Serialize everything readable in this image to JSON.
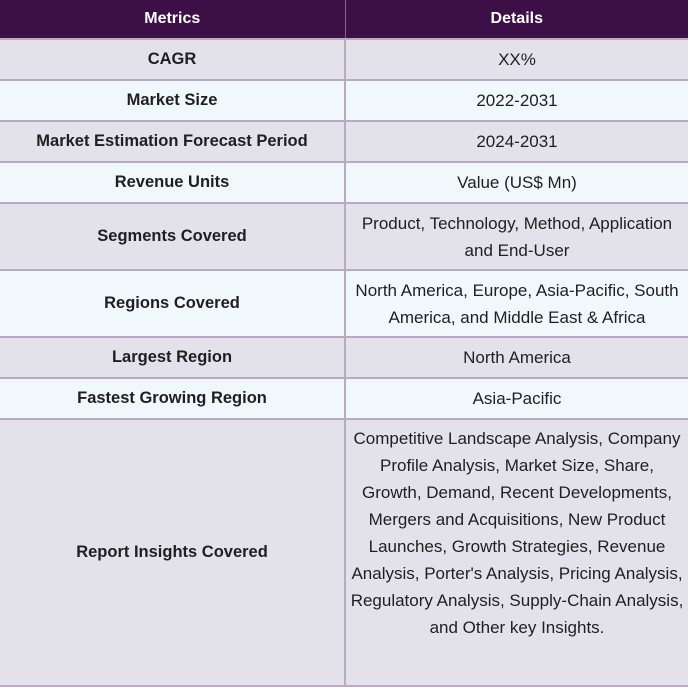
{
  "header": {
    "col1": "Metrics",
    "col2": "Details"
  },
  "rows": [
    {
      "metric": "CAGR",
      "detail": "XX%"
    },
    {
      "metric": "Market Size",
      "detail": "2022-2031"
    },
    {
      "metric": "Market Estimation Forecast Period",
      "detail": "2024-2031"
    },
    {
      "metric": "Revenue Units",
      "detail": "Value (US$ Mn)"
    },
    {
      "metric": "Segments Covered",
      "detail": "Product, Technology, Method, Application and End-User"
    },
    {
      "metric": "Regions Covered",
      "detail": "North America, Europe, Asia-Pacific, South America, and Middle East & Africa"
    },
    {
      "metric": "Largest Region",
      "detail": "North America"
    },
    {
      "metric": "Fastest Growing Region",
      "detail": "Asia-Pacific"
    },
    {
      "metric": "Report Insights Covered",
      "detail": "Competitive Landscape Analysis, Company Profile Analysis, Market Size, Share, Growth, Demand, Recent Developments, Mergers and Acquisitions, New Product Launches, Growth Strategies, Revenue Analysis, Porter's Analysis, Pricing Analysis, Regulatory Analysis, Supply-Chain Analysis, and Other key Insights."
    }
  ],
  "colors": {
    "header_bg": "#3c0f47",
    "row_odd_bg": "#e3e1ea",
    "row_even_bg": "#f1f8fb",
    "border": "#b8aac2"
  }
}
